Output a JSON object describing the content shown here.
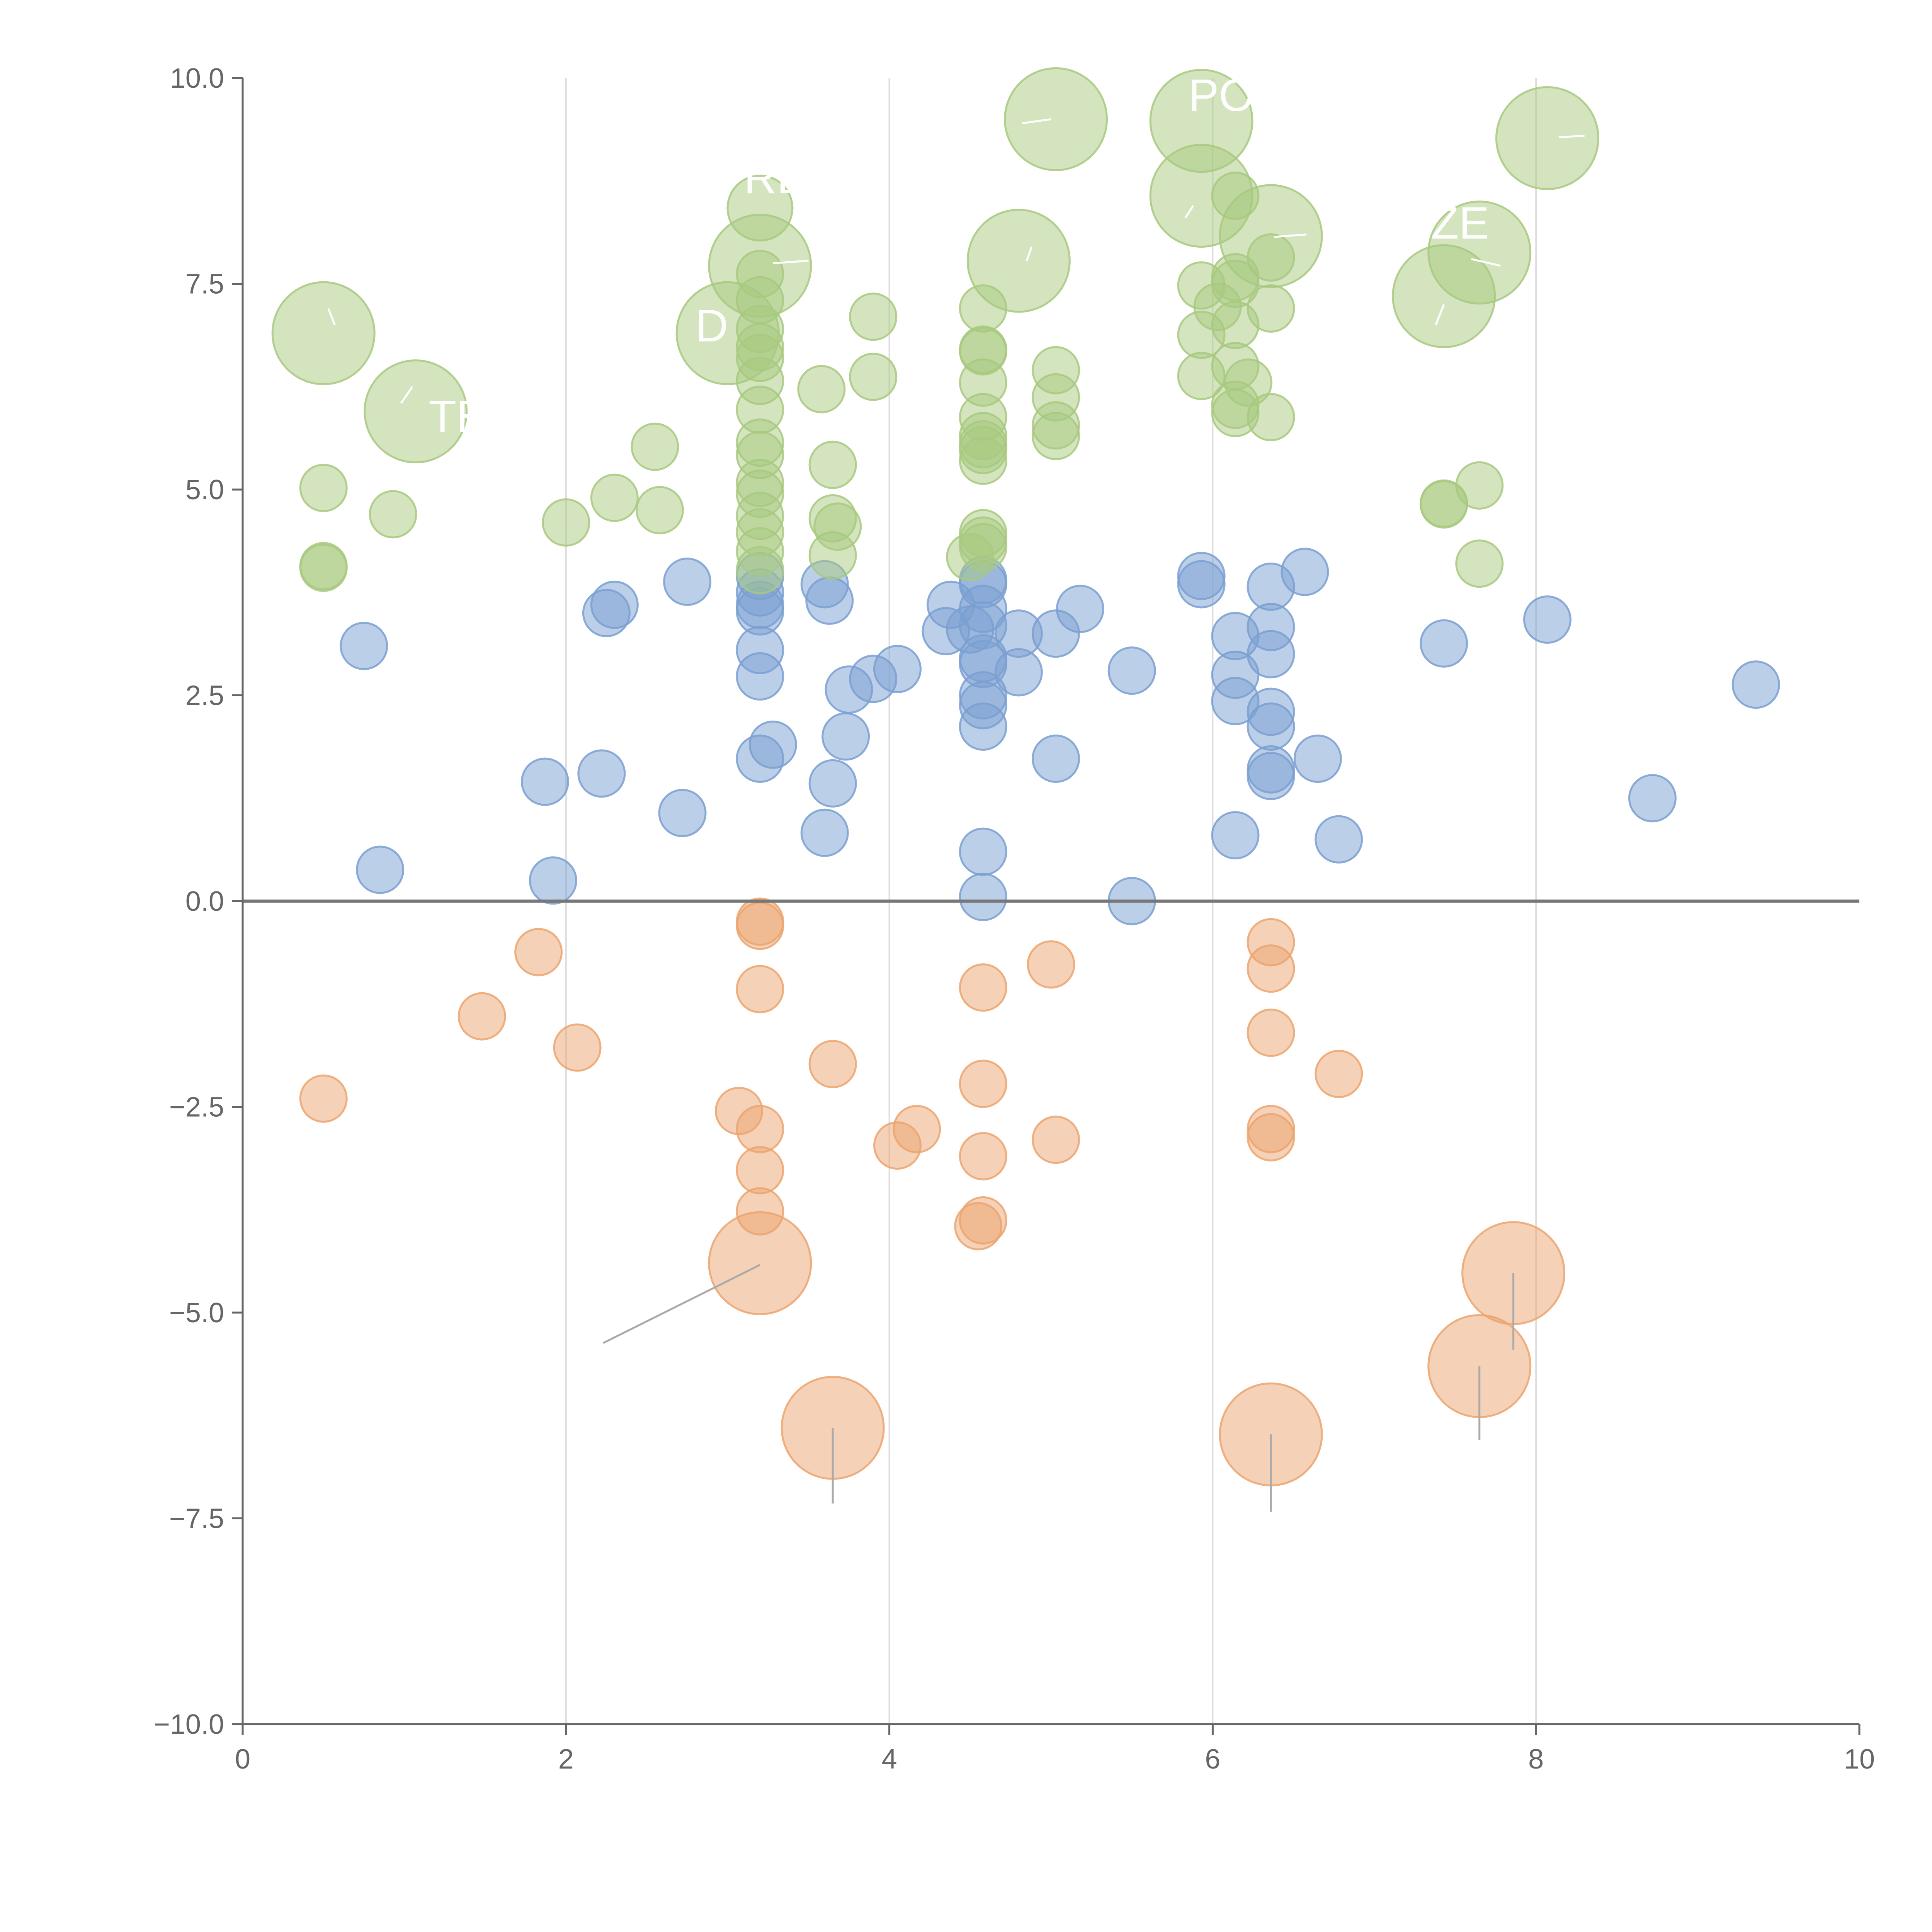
{
  "chart_data": {
    "type": "scatter",
    "title": "",
    "xlabel": "",
    "ylabel": "",
    "xlim": [
      0,
      10
    ],
    "ylim": [
      -10,
      10
    ],
    "x_ticks": [
      0,
      2,
      4,
      6,
      8,
      10
    ],
    "x_tick_labels": [
      "0",
      "2",
      "4",
      "6",
      "8",
      "10"
    ],
    "y_ticks": [
      -10,
      -7.5,
      -5,
      -2.5,
      0,
      2.5,
      5,
      7.5,
      10
    ],
    "y_tick_labels": [
      "−10.0",
      "−7.5",
      "−5.0",
      "−2.5",
      "0.0",
      "2.5",
      "5.0",
      "7.5",
      "10.0"
    ],
    "vertical_gridlines_at": [
      2,
      4,
      6,
      8
    ],
    "reference_line_y": 0,
    "colors": {
      "blue": "#7a9fd1",
      "green": "#a8c97f",
      "orange": "#eba46f",
      "axis": "#666666",
      "grid": "#dddddd",
      "leader": "#aaaaaa"
    },
    "labels": [
      {
        "text": "TE",
        "x": 1.15,
        "y": 5.7
      },
      {
        "text": "RD",
        "x": 3.1,
        "y": 8.6
      },
      {
        "text": "D",
        "x": 2.8,
        "y": 6.8
      },
      {
        "text": "PO",
        "x": 5.85,
        "y": 9.6
      },
      {
        "text": "ZE",
        "x": 7.35,
        "y": 8.05
      }
    ],
    "series": [
      {
        "name": "blue",
        "color": "#7a9fd1",
        "points": [
          [
            0.75,
            3.1,
            1
          ],
          [
            0.85,
            0.38,
            1
          ],
          [
            1.87,
            1.45,
            1
          ],
          [
            1.92,
            0.25,
            1
          ],
          [
            2.22,
            1.55,
            1
          ],
          [
            2.25,
            3.5,
            1
          ],
          [
            2.3,
            3.6,
            1
          ],
          [
            2.72,
            1.07,
            1
          ],
          [
            2.75,
            3.88,
            1
          ],
          [
            3.2,
            3.95,
            1
          ],
          [
            3.2,
            3.75,
            1
          ],
          [
            3.2,
            3.6,
            1
          ],
          [
            3.2,
            3.52,
            1
          ],
          [
            3.2,
            3.05,
            1
          ],
          [
            3.2,
            2.73,
            1
          ],
          [
            3.2,
            1.73,
            1
          ],
          [
            3.28,
            1.9,
            1
          ],
          [
            3.6,
            3.85,
            1
          ],
          [
            3.63,
            3.65,
            1
          ],
          [
            3.6,
            0.83,
            1
          ],
          [
            3.65,
            1.43,
            1
          ],
          [
            3.73,
            2.0,
            1
          ],
          [
            3.75,
            2.57,
            1
          ],
          [
            3.9,
            2.7,
            1
          ],
          [
            4.05,
            2.82,
            1
          ],
          [
            4.35,
            3.28,
            1
          ],
          [
            4.38,
            3.6,
            1
          ],
          [
            4.5,
            3.3,
            1
          ],
          [
            4.58,
            3.9,
            1
          ],
          [
            4.58,
            3.85,
            1
          ],
          [
            4.58,
            3.55,
            1
          ],
          [
            4.58,
            3.35,
            1
          ],
          [
            4.58,
            2.95,
            1
          ],
          [
            4.58,
            2.88,
            1
          ],
          [
            4.58,
            2.5,
            1
          ],
          [
            4.58,
            2.38,
            1
          ],
          [
            4.58,
            2.12,
            1
          ],
          [
            4.58,
            0.6,
            1
          ],
          [
            4.58,
            0.05,
            1
          ],
          [
            4.8,
            3.25,
            1
          ],
          [
            4.8,
            2.78,
            1
          ],
          [
            5.03,
            3.25,
            1
          ],
          [
            5.03,
            1.73,
            1
          ],
          [
            5.18,
            3.55,
            1
          ],
          [
            5.5,
            2.8,
            1
          ],
          [
            5.5,
            0.0,
            1
          ],
          [
            5.93,
            3.95,
            1
          ],
          [
            5.93,
            3.85,
            1
          ],
          [
            6.14,
            3.22,
            1
          ],
          [
            6.14,
            2.75,
            1
          ],
          [
            6.14,
            2.43,
            1
          ],
          [
            6.14,
            0.8,
            1
          ],
          [
            6.36,
            3.82,
            1
          ],
          [
            6.36,
            3.33,
            1
          ],
          [
            6.36,
            3.0,
            1
          ],
          [
            6.36,
            2.3,
            1
          ],
          [
            6.36,
            2.12,
            1
          ],
          [
            6.36,
            1.6,
            1
          ],
          [
            6.36,
            1.52,
            1
          ],
          [
            6.57,
            4.0,
            1
          ],
          [
            6.65,
            1.73,
            1
          ],
          [
            6.78,
            0.75,
            1
          ],
          [
            7.43,
            3.13,
            1
          ],
          [
            8.07,
            3.42,
            1
          ],
          [
            8.72,
            1.25,
            1
          ],
          [
            9.36,
            2.63,
            1
          ]
        ]
      },
      {
        "name": "green",
        "color": "#a8c97f",
        "points": [
          [
            0.5,
            6.9,
            2.2
          ],
          [
            0.5,
            5.02,
            1
          ],
          [
            0.5,
            4.07,
            1
          ],
          [
            0.5,
            4.05,
            1
          ],
          [
            0.93,
            4.7,
            1
          ],
          [
            1.07,
            5.95,
            2.2
          ],
          [
            2.0,
            4.6,
            1
          ],
          [
            2.3,
            4.9,
            1
          ],
          [
            2.55,
            5.52,
            1
          ],
          [
            2.58,
            4.75,
            1
          ],
          [
            3.0,
            6.9,
            2.2
          ],
          [
            3.2,
            8.42,
            1.4
          ],
          [
            3.2,
            7.72,
            2.2
          ],
          [
            3.2,
            7.62,
            1
          ],
          [
            3.2,
            7.3,
            1
          ],
          [
            3.2,
            6.95,
            1
          ],
          [
            3.2,
            6.73,
            1
          ],
          [
            3.2,
            6.6,
            1
          ],
          [
            3.2,
            6.32,
            1
          ],
          [
            3.2,
            5.97,
            1
          ],
          [
            3.2,
            5.57,
            1
          ],
          [
            3.2,
            5.42,
            1
          ],
          [
            3.2,
            5.08,
            1
          ],
          [
            3.2,
            4.95,
            1
          ],
          [
            3.2,
            4.68,
            1
          ],
          [
            3.2,
            4.48,
            1
          ],
          [
            3.2,
            4.25,
            1
          ],
          [
            3.2,
            4.02,
            1
          ],
          [
            3.58,
            6.22,
            1
          ],
          [
            3.65,
            5.3,
            1
          ],
          [
            3.65,
            4.65,
            1
          ],
          [
            3.68,
            4.55,
            1
          ],
          [
            3.65,
            4.2,
            1
          ],
          [
            3.9,
            7.1,
            1
          ],
          [
            3.9,
            6.37,
            1
          ],
          [
            4.5,
            4.18,
            1
          ],
          [
            4.58,
            7.2,
            1
          ],
          [
            4.58,
            6.7,
            1
          ],
          [
            4.58,
            6.68,
            1
          ],
          [
            4.58,
            6.3,
            1
          ],
          [
            4.58,
            5.88,
            1
          ],
          [
            4.58,
            5.65,
            1
          ],
          [
            4.58,
            5.55,
            1
          ],
          [
            4.58,
            5.48,
            1
          ],
          [
            4.58,
            5.35,
            1
          ],
          [
            4.58,
            4.47,
            1
          ],
          [
            4.58,
            4.38,
            1
          ],
          [
            4.58,
            4.3,
            1
          ],
          [
            4.8,
            7.78,
            2.2
          ],
          [
            5.03,
            9.5,
            2.2
          ],
          [
            5.03,
            6.45,
            1
          ],
          [
            5.03,
            6.12,
            1
          ],
          [
            5.03,
            5.78,
            1
          ],
          [
            5.03,
            5.65,
            1
          ],
          [
            5.93,
            9.48,
            2.2
          ],
          [
            5.93,
            8.57,
            2.2
          ],
          [
            5.93,
            7.48,
            1
          ],
          [
            5.93,
            6.88,
            1
          ],
          [
            5.93,
            6.38,
            1
          ],
          [
            6.03,
            7.22,
            1
          ],
          [
            6.14,
            8.57,
            1
          ],
          [
            6.14,
            7.58,
            1
          ],
          [
            6.14,
            7.5,
            1
          ],
          [
            6.14,
            7.0,
            1
          ],
          [
            6.14,
            6.5,
            1
          ],
          [
            6.14,
            6.03,
            1
          ],
          [
            6.14,
            5.93,
            1
          ],
          [
            6.22,
            6.3,
            1
          ],
          [
            6.36,
            8.08,
            2.2
          ],
          [
            6.36,
            7.82,
            1
          ],
          [
            6.36,
            7.2,
            1
          ],
          [
            6.36,
            5.88,
            1
          ],
          [
            7.43,
            7.35,
            2.2
          ],
          [
            7.43,
            4.83,
            1
          ],
          [
            7.43,
            4.82,
            1
          ],
          [
            7.65,
            7.88,
            2.2
          ],
          [
            7.65,
            5.05,
            1
          ],
          [
            7.65,
            4.1,
            1
          ],
          [
            8.07,
            9.27,
            2.2
          ]
        ]
      },
      {
        "name": "orange",
        "color": "#eba46f",
        "points": [
          [
            0.5,
            -2.4,
            1
          ],
          [
            1.48,
            -1.4,
            1
          ],
          [
            1.83,
            -0.62,
            1
          ],
          [
            2.07,
            -1.78,
            1
          ],
          [
            3.07,
            -2.55,
            1
          ],
          [
            3.2,
            -0.25,
            1
          ],
          [
            3.2,
            -0.3,
            1
          ],
          [
            3.2,
            -1.07,
            1
          ],
          [
            3.2,
            -2.77,
            1
          ],
          [
            3.2,
            -3.27,
            1
          ],
          [
            3.2,
            -3.77,
            1
          ],
          [
            3.2,
            -4.4,
            2.2
          ],
          [
            3.65,
            -1.98,
            1
          ],
          [
            3.65,
            -6.4,
            2.2
          ],
          [
            4.05,
            -2.97,
            1
          ],
          [
            4.17,
            -2.77,
            1
          ],
          [
            4.55,
            -3.95,
            1
          ],
          [
            4.58,
            -1.05,
            1
          ],
          [
            4.58,
            -2.22,
            1
          ],
          [
            4.58,
            -3.1,
            1
          ],
          [
            4.58,
            -3.88,
            1
          ],
          [
            5.0,
            -0.77,
            1
          ],
          [
            5.03,
            -2.9,
            1
          ],
          [
            6.36,
            -0.5,
            1
          ],
          [
            6.36,
            -0.82,
            1
          ],
          [
            6.36,
            -1.6,
            1
          ],
          [
            6.36,
            -2.77,
            1
          ],
          [
            6.36,
            -2.87,
            1
          ],
          [
            6.36,
            -6.48,
            2.2
          ],
          [
            6.78,
            -2.1,
            1
          ],
          [
            7.65,
            -5.65,
            2.2
          ],
          [
            7.86,
            -4.52,
            2.2
          ]
        ]
      }
    ],
    "leader_lines": [
      {
        "x1": 1.05,
        "y1": 6.25,
        "x2": 0.98,
        "y2": 6.05,
        "color": "#ffffff"
      },
      {
        "x1": 0.53,
        "y1": 7.2,
        "x2": 0.57,
        "y2": 7.0,
        "color": "#ffffff"
      },
      {
        "x1": 3.28,
        "y1": 7.75,
        "x2": 3.5,
        "y2": 7.78,
        "color": "#ffffff"
      },
      {
        "x1": 4.82,
        "y1": 9.45,
        "x2": 5.0,
        "y2": 9.5,
        "color": "#ffffff"
      },
      {
        "x1": 4.85,
        "y1": 7.78,
        "x2": 4.88,
        "y2": 7.95,
        "color": "#ffffff"
      },
      {
        "x1": 5.83,
        "y1": 8.3,
        "x2": 5.88,
        "y2": 8.45,
        "color": "#ffffff"
      },
      {
        "x1": 6.38,
        "y1": 8.07,
        "x2": 6.58,
        "y2": 8.1,
        "color": "#ffffff"
      },
      {
        "x1": 7.38,
        "y1": 7.0,
        "x2": 7.43,
        "y2": 7.25,
        "color": "#ffffff"
      },
      {
        "x1": 7.6,
        "y1": 7.8,
        "x2": 7.78,
        "y2": 7.72,
        "color": "#ffffff"
      },
      {
        "x1": 8.14,
        "y1": 9.28,
        "x2": 8.3,
        "y2": 9.3,
        "color": "#ffffff"
      },
      {
        "x1": 3.2,
        "y1": -4.42,
        "x2": 2.23,
        "y2": -5.37,
        "color": "#aaaaaa"
      },
      {
        "x1": 3.65,
        "y1": -6.4,
        "x2": 3.65,
        "y2": -7.32,
        "color": "#aaaaaa"
      },
      {
        "x1": 6.36,
        "y1": -6.48,
        "x2": 6.36,
        "y2": -7.42,
        "color": "#aaaaaa"
      },
      {
        "x1": 7.65,
        "y1": -5.65,
        "x2": 7.65,
        "y2": -6.55,
        "color": "#aaaaaa"
      },
      {
        "x1": 7.86,
        "y1": -4.52,
        "x2": 7.86,
        "y2": -5.45,
        "color": "#aaaaaa"
      }
    ]
  }
}
